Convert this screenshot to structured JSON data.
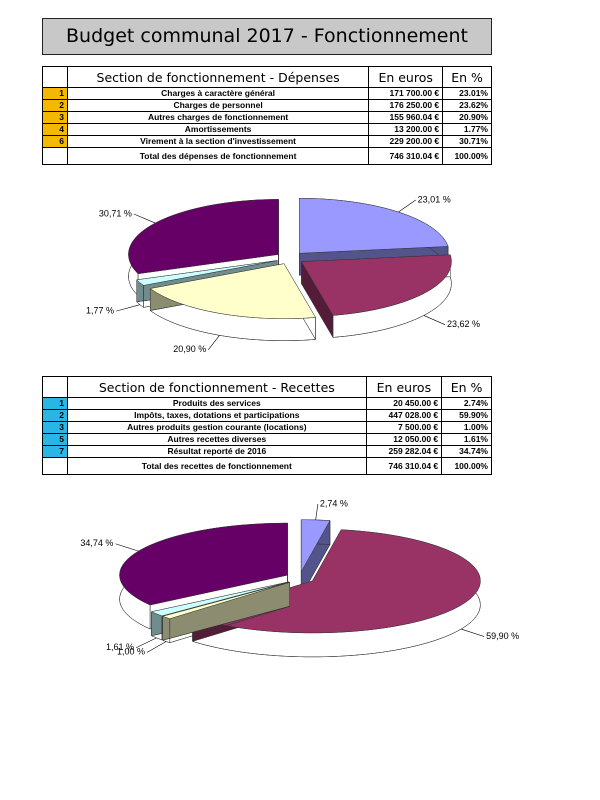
{
  "title": "Budget communal 2017 - Fonctionnement",
  "depenses": {
    "headers": [
      "Section de fonctionnement - Dépenses",
      "En euros",
      "En %"
    ],
    "rows": [
      [
        "1",
        "Charges à caractère général",
        "171 700.00 €",
        "23.01%"
      ],
      [
        "2",
        "Charges de personnel",
        "176 250.00 €",
        "23.62%"
      ],
      [
        "3",
        "Autres charges de fonctionnement",
        "155 960.04 €",
        "20.90%"
      ],
      [
        "4",
        "Amortissements",
        "13 200.00 €",
        "1.77%"
      ],
      [
        "6",
        "Virement à la section d'investissement",
        "229 200.00 €",
        "30.71%"
      ]
    ],
    "total": [
      "Total des dépenses de fonctionnement",
      "746 310.04 €",
      "100.00%"
    ]
  },
  "recettes": {
    "headers": [
      "Section de fonctionnement - Recettes",
      "En euros",
      "En %"
    ],
    "rows": [
      [
        "1",
        "Produits des services",
        "20 450.00 €",
        "2.74%"
      ],
      [
        "2",
        "Impôts, taxes, dotations et participations",
        "447 028.00 €",
        "59.90%"
      ],
      [
        "3",
        "Autres produits gestion courante (locations)",
        "7 500.00 €",
        "1.00%"
      ],
      [
        "5",
        "Autres recettes diverses",
        "12 050.00 €",
        "1.61%"
      ],
      [
        "7",
        "Résultat reporté de 2016",
        "259 282.04 €",
        "34.74%"
      ]
    ],
    "total": [
      "Total des recettes de fonctionnement",
      "746 310.04 €",
      "100.00%"
    ]
  },
  "chart_data": [
    {
      "type": "pie",
      "values": [
        23.01,
        23.62,
        20.9,
        1.77,
        30.71
      ],
      "value_labels": [
        "23,01 %",
        "23,62 %",
        "20,90 %",
        "1,77 %",
        "30,71 %"
      ],
      "colors": [
        "#9999ff",
        "#993366",
        "#ffffcc",
        "#ccffff",
        "#660066"
      ]
    },
    {
      "type": "pie",
      "values": [
        2.74,
        59.9,
        1.0,
        1.61,
        34.74
      ],
      "value_labels": [
        "2,74 %",
        "59,90 %",
        "1,00 %",
        "1,61 %",
        "34,74 %"
      ],
      "colors": [
        "#9999ff",
        "#993366",
        "#ffffcc",
        "#ccffff",
        "#660066"
      ]
    }
  ]
}
